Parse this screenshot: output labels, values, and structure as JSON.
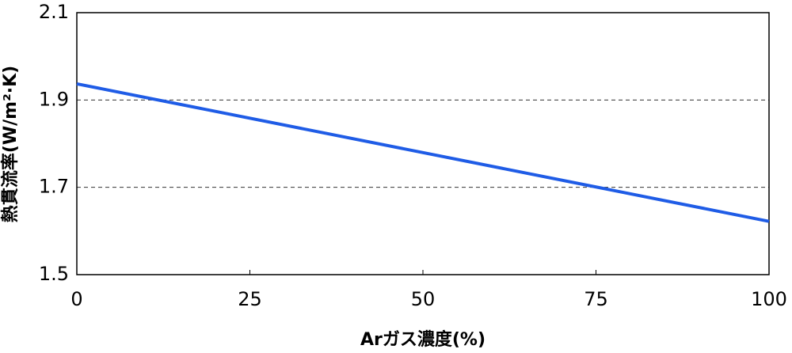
{
  "chart_data": {
    "type": "line",
    "x_label": "Arガス濃度(%)",
    "y_label": "熱貫流率(W/m²·K)",
    "x": [
      0,
      100
    ],
    "series": [
      {
        "color": "#1f5ce6",
        "values": [
          1.937,
          1.622
        ]
      }
    ],
    "xlim": [
      0,
      100
    ],
    "xticks": [
      0,
      25,
      50,
      75,
      100
    ],
    "ylim": [
      1.5,
      2.1
    ],
    "yticks": [
      1.5,
      1.7,
      1.9,
      2.1
    ],
    "grid": true
  }
}
